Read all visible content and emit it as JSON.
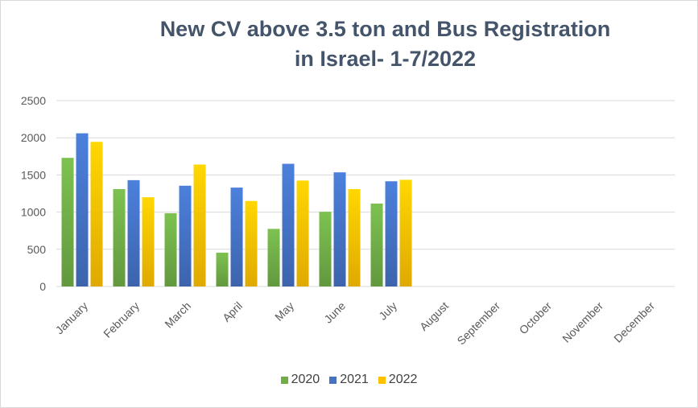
{
  "chart_data": {
    "type": "bar",
    "title": [
      "New CV above 3.5 ton and Bus Registration",
      "in Israel- 1-7/2022"
    ],
    "categories": [
      "January",
      "February",
      "March",
      "April",
      "May",
      "June",
      "July",
      "August",
      "September",
      "October",
      "November",
      "December"
    ],
    "series": [
      {
        "name": "2020",
        "color": "#70ad47",
        "values": [
          1730,
          1310,
          985,
          455,
          775,
          1005,
          1115,
          null,
          null,
          null,
          null,
          null
        ]
      },
      {
        "name": "2021",
        "color": "#4472c4",
        "values": [
          2060,
          1430,
          1355,
          1330,
          1650,
          1535,
          1415,
          null,
          null,
          null,
          null,
          null
        ]
      },
      {
        "name": "2022",
        "color": "#ffc000",
        "values": [
          1945,
          1200,
          1640,
          1150,
          1425,
          1310,
          1435,
          null,
          null,
          null,
          null,
          null
        ]
      }
    ],
    "ylim": [
      0,
      2500
    ],
    "yticks": [
      0,
      500,
      1000,
      1500,
      2000,
      2500
    ],
    "grid": true,
    "legend": "bottom"
  }
}
